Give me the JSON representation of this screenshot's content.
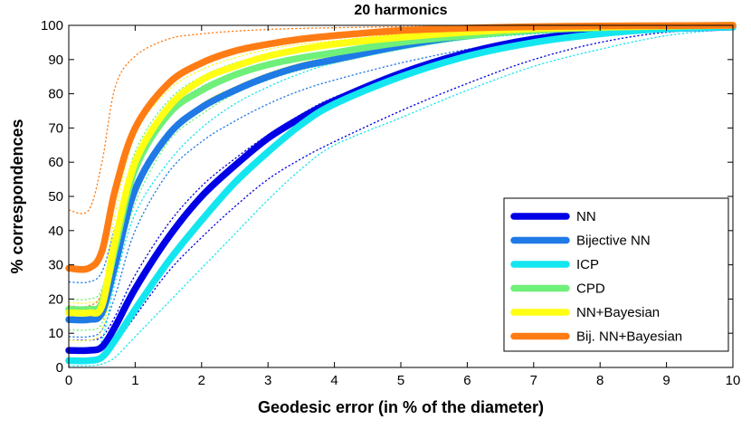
{
  "chart_data": {
    "type": "line",
    "title": "20 harmonics",
    "xlabel": "Geodesic error (in % of the diameter)",
    "ylabel": "% correspondences",
    "xlim": [
      0,
      10
    ],
    "ylim": [
      0,
      100
    ],
    "xticks": [
      "0",
      "1",
      "2",
      "3",
      "4",
      "5",
      "6",
      "7",
      "8",
      "9",
      "10"
    ],
    "yticks": [
      "0",
      "10",
      "20",
      "30",
      "40",
      "50",
      "60",
      "70",
      "80",
      "90",
      "100"
    ],
    "legend_position": "bottom-right",
    "series": [
      {
        "name": "NN",
        "color": "#0000e6",
        "x": [
          0,
          0.3,
          0.5,
          0.7,
          1,
          1.5,
          2,
          2.5,
          3,
          3.5,
          4,
          5,
          6,
          7,
          8,
          9,
          10
        ],
        "y": [
          5,
          5,
          6,
          12,
          23,
          38,
          50,
          59,
          67,
          73,
          78,
          86,
          92,
          96,
          98,
          99,
          99.5
        ],
        "band_lower": [
          2,
          2,
          3,
          7,
          15,
          28,
          38,
          47,
          55,
          61,
          66,
          75,
          83,
          90,
          95,
          98,
          99
        ],
        "band_upper": [
          8,
          8,
          9,
          15,
          27,
          42,
          53,
          61,
          68,
          74,
          79,
          86,
          92,
          96,
          98,
          99,
          99.5
        ]
      },
      {
        "name": "Bijective NN",
        "color": "#1f7ae6",
        "x": [
          0,
          0.3,
          0.5,
          0.7,
          1,
          1.5,
          2,
          2.5,
          3,
          3.5,
          4,
          5,
          6,
          7,
          8,
          9,
          10
        ],
        "y": [
          14,
          14,
          16,
          30,
          52,
          68,
          76,
          81,
          85,
          88,
          90,
          94,
          97,
          98.5,
          99.3,
          99.7,
          100
        ],
        "band_lower": [
          9,
          9,
          11,
          21,
          40,
          57,
          66,
          72,
          77,
          81,
          84,
          89,
          93,
          96,
          98,
          99,
          99.5
        ],
        "band_upper": [
          25,
          25,
          28,
          41,
          61,
          75,
          82,
          86,
          89,
          91,
          92,
          95,
          97,
          98.5,
          99.3,
          99.7,
          100
        ]
      },
      {
        "name": "ICP",
        "color": "#14e6ef",
        "x": [
          0,
          0.3,
          0.5,
          0.7,
          1,
          1.5,
          2,
          2.5,
          3,
          3.5,
          4,
          5,
          6,
          7,
          8,
          9,
          10
        ],
        "y": [
          2,
          2,
          3,
          8,
          17,
          31,
          43,
          54,
          63,
          71,
          77,
          85,
          91,
          95,
          97.5,
          99,
          99.5
        ],
        "band_lower": [
          0.5,
          0.5,
          1,
          3,
          9,
          19,
          29,
          39,
          49,
          58,
          65,
          73,
          81,
          88,
          93,
          97,
          99
        ],
        "band_upper": [
          5,
          5,
          8,
          25,
          45,
          60,
          70,
          77,
          82,
          86,
          89,
          93,
          96,
          97.5,
          98.7,
          99.5,
          100
        ]
      },
      {
        "name": "CPD",
        "color": "#6ff07a",
        "x": [
          0,
          0.3,
          0.5,
          0.7,
          1,
          1.5,
          2,
          2.5,
          3,
          3.5,
          4,
          5,
          6,
          7,
          8,
          9,
          10
        ],
        "y": [
          17,
          17,
          19,
          35,
          58,
          74,
          81,
          85.5,
          88.5,
          90.5,
          92,
          95,
          97,
          98.5,
          99.3,
          99.7,
          100
        ],
        "band_lower": [
          11,
          11,
          13,
          27,
          48,
          66,
          74,
          80,
          84,
          87,
          89,
          93,
          96,
          98,
          99,
          99.5,
          99.8
        ],
        "band_upper": [
          20,
          20,
          23,
          40,
          63,
          78,
          85,
          89,
          91.5,
          93,
          94,
          96,
          97.5,
          98.7,
          99.4,
          99.8,
          100
        ]
      },
      {
        "name": "NN+Bayesian",
        "color": "#ffff14",
        "x": [
          0,
          0.3,
          0.5,
          0.7,
          1,
          1.5,
          2,
          2.5,
          3,
          3.5,
          4,
          5,
          6,
          7,
          8,
          9,
          10
        ],
        "y": [
          16,
          16,
          18,
          37,
          60,
          76,
          84,
          88,
          91,
          93,
          94.5,
          96.5,
          98,
          99,
          99.5,
          99.8,
          100
        ],
        "band_lower": [
          8,
          8,
          11,
          28,
          50,
          68,
          77,
          82,
          86,
          89,
          91,
          94,
          96.5,
          98,
          99,
          99.5,
          99.8
        ],
        "band_upper": [
          19,
          19,
          22,
          45,
          68,
          81,
          87,
          90.5,
          93,
          94.5,
          95.5,
          97.5,
          98.5,
          99.3,
          99.6,
          99.8,
          100
        ]
      },
      {
        "name": "Bij. NN+Bayesian",
        "color": "#ff7c14",
        "x": [
          0,
          0.3,
          0.5,
          0.7,
          1,
          1.5,
          2,
          2.5,
          3,
          3.5,
          4,
          5,
          6,
          7,
          8,
          9,
          10
        ],
        "y": [
          29,
          29,
          34,
          52,
          70,
          83,
          89,
          92.5,
          94.5,
          96,
          97,
          98.5,
          99.2,
          99.6,
          99.8,
          99.9,
          100
        ],
        "band_lower": [
          18,
          18,
          22,
          40,
          60,
          76,
          84,
          88.5,
          91.5,
          93.5,
          95,
          97.5,
          98.6,
          99.3,
          99.7,
          99.9,
          100
        ],
        "band_upper": [
          46,
          46,
          60,
          82,
          91,
          96,
          97.5,
          98.3,
          98.8,
          99.1,
          99.3,
          99.6,
          99.8,
          99.9,
          100,
          100,
          100
        ]
      }
    ]
  }
}
